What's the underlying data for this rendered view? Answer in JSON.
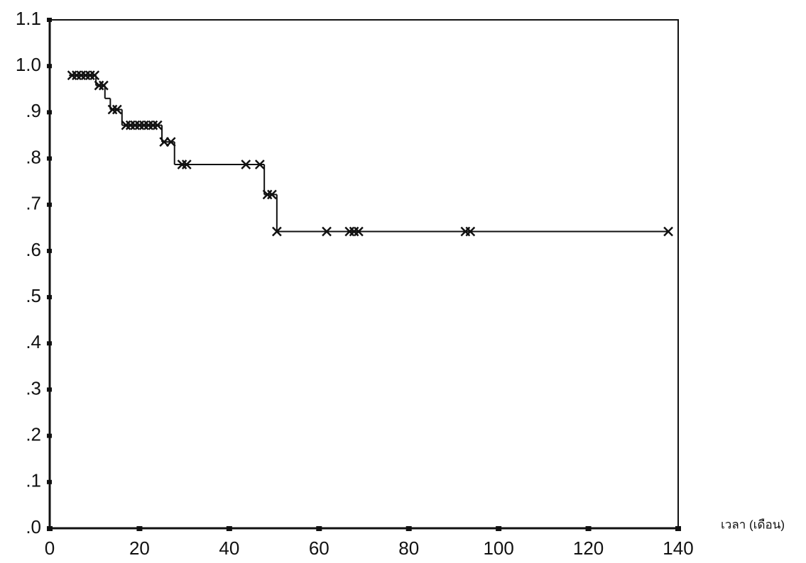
{
  "chart_data": {
    "type": "step",
    "x_label": "เวลา (เดือน)",
    "xlim": [
      0,
      140
    ],
    "xticks": [
      0,
      20,
      40,
      60,
      80,
      100,
      120,
      140
    ],
    "ylim": [
      0,
      1.1
    ],
    "yticks": [
      {
        "value": 0,
        "label": ".0"
      },
      {
        "value": 0.1,
        "label": ".1"
      },
      {
        "value": 0.2,
        "label": ".2"
      },
      {
        "value": 0.3,
        "label": ".3"
      },
      {
        "value": 0.4,
        "label": ".4"
      },
      {
        "value": 0.5,
        "label": ".5"
      },
      {
        "value": 0.6,
        "label": ".6"
      },
      {
        "value": 0.7,
        "label": ".7"
      },
      {
        "value": 0.8,
        "label": ".8"
      },
      {
        "value": 0.9,
        "label": ".9"
      },
      {
        "value": 1.0,
        "label": "1.0"
      },
      1.1
    ],
    "color": "#111111",
    "x": [
      4.3,
      10.3,
      12.3,
      13.5,
      16.1,
      25,
      27.8,
      47.8,
      50.6,
      137.8
    ],
    "values": [
      0.98,
      0.958,
      0.93,
      0.906,
      0.872,
      0.836,
      0.787,
      0.722,
      0.642,
      0.642
    ],
    "censored": {
      "x": [
        5,
        6,
        7,
        8,
        9,
        10,
        11,
        12,
        14,
        15,
        17,
        18,
        19,
        20,
        21,
        22,
        23,
        24,
        25.5,
        27,
        29.5,
        30.5,
        43.7,
        46.8,
        48.5,
        49.5,
        50.6,
        61.7,
        66.8,
        67.8,
        68.8,
        92.6,
        93.7,
        137.8
      ],
      "values": [
        0.98,
        0.98,
        0.98,
        0.98,
        0.98,
        0.98,
        0.958,
        0.958,
        0.906,
        0.906,
        0.872,
        0.872,
        0.872,
        0.872,
        0.872,
        0.872,
        0.872,
        0.872,
        0.836,
        0.836,
        0.787,
        0.787,
        0.787,
        0.787,
        0.722,
        0.722,
        0.642,
        0.642,
        0.642,
        0.642,
        0.642,
        0.642,
        0.642,
        0.642
      ]
    }
  }
}
